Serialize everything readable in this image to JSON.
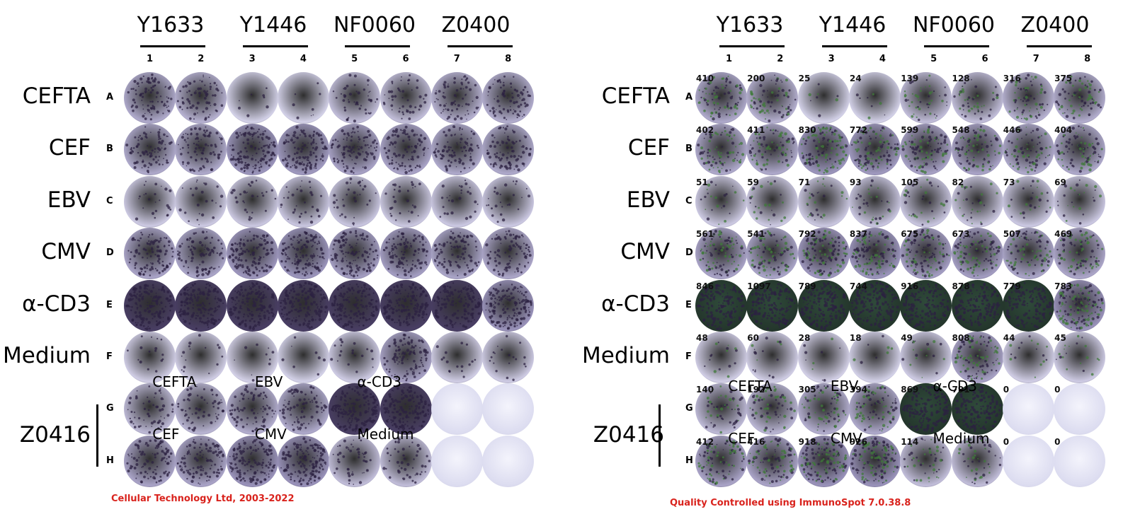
{
  "donors": [
    "Y1633",
    "Y1446",
    "NF0060",
    "Z0400"
  ],
  "columns": [
    "1",
    "2",
    "3",
    "4",
    "5",
    "6",
    "7",
    "8"
  ],
  "rows": [
    {
      "letter": "A",
      "label": "CEFTA"
    },
    {
      "letter": "B",
      "label": "CEF"
    },
    {
      "letter": "C",
      "label": "EBV"
    },
    {
      "letter": "D",
      "label": "CMV"
    },
    {
      "letter": "E",
      "label": "α-CD3"
    },
    {
      "letter": "F",
      "label": "Medium"
    },
    {
      "letter": "G",
      "label": ""
    },
    {
      "letter": "H",
      "label": ""
    }
  ],
  "group_label": "Z0416",
  "sub_conditions": {
    "G": [
      {
        "label": "CEFTA",
        "col": 1
      },
      {
        "label": "EBV",
        "col": 3
      },
      {
        "label": "α-CD3",
        "col": 5
      }
    ],
    "H": [
      {
        "label": "CEF",
        "col": 1
      },
      {
        "label": "CMV",
        "col": 3
      },
      {
        "label": "Medium",
        "col": 5
      }
    ]
  },
  "spot_counts": [
    [
      "410",
      "200",
      "25",
      "24",
      "139",
      "128",
      "316",
      "375"
    ],
    [
      "402",
      "411",
      "830",
      "772",
      "599",
      "548",
      "446",
      "404"
    ],
    [
      "51",
      "59",
      "71",
      "93",
      "105",
      "82",
      "73",
      "69"
    ],
    [
      "561",
      "541",
      "792",
      "837",
      "675",
      "673",
      "507",
      "469"
    ],
    [
      "846",
      "1097",
      "789",
      "744",
      "916",
      "878",
      "779",
      "783"
    ],
    [
      "48",
      "60",
      "28",
      "18",
      "49",
      "808",
      "44",
      "45"
    ],
    [
      "140",
      "192",
      "305",
      "394",
      "869",
      "791",
      "0",
      "0"
    ],
    [
      "412",
      "416",
      "918",
      "926",
      "114",
      "",
      "0",
      "0"
    ]
  ],
  "spot_density": [
    [
      0.55,
      0.45,
      0.05,
      0.05,
      0.3,
      0.3,
      0.45,
      0.5
    ],
    [
      0.55,
      0.55,
      0.8,
      0.75,
      0.65,
      0.62,
      0.55,
      0.55
    ],
    [
      0.15,
      0.15,
      0.18,
      0.2,
      0.2,
      0.18,
      0.16,
      0.16
    ],
    [
      0.62,
      0.6,
      0.78,
      0.8,
      0.7,
      0.7,
      0.6,
      0.58
    ],
    [
      1.0,
      1.0,
      1.0,
      1.0,
      1.0,
      1.0,
      0.95,
      0.92
    ],
    [
      0.1,
      0.1,
      0.06,
      0.05,
      0.12,
      0.65,
      0.1,
      0.12
    ],
    [
      0.35,
      0.4,
      0.5,
      0.55,
      1.0,
      1.0,
      0.0,
      0.0
    ],
    [
      0.62,
      0.62,
      0.85,
      0.88,
      0.3,
      0.3,
      0.0,
      0.0
    ]
  ],
  "colors": {
    "well_light": "#d8d6ec",
    "well_mid": "#9a93bb",
    "well_dark": "#3b2f55",
    "spot": "#2c2142",
    "spot_qc": "#3f7a3a",
    "footer": "#d9231d"
  },
  "footers": {
    "left": "Cellular Technology Ltd, 2003-2022",
    "right": "Quality Controlled using ImmunoSpot 7.0.38.8"
  }
}
